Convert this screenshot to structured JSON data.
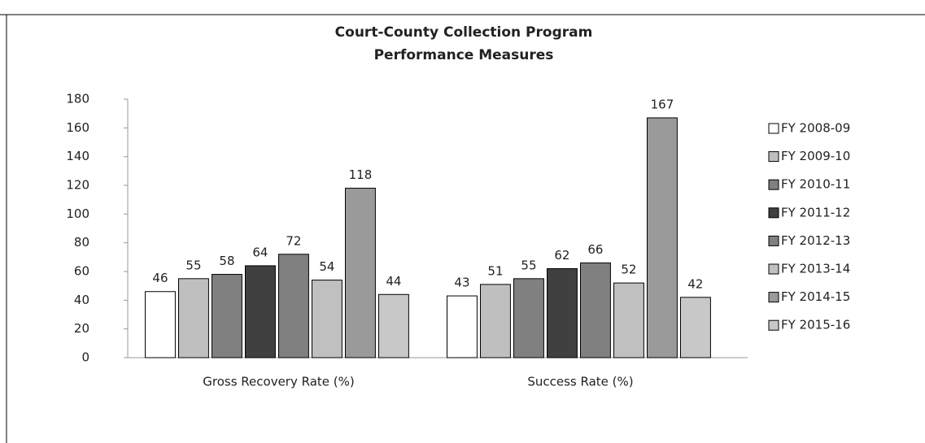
{
  "chart_data": {
    "type": "bar",
    "title": [
      "Court-County Collection Program",
      "Performance Measures"
    ],
    "categories": [
      "Gross Recovery Rate (%)",
      "Success Rate (%)"
    ],
    "series": [
      {
        "name": "FY 2008-09",
        "color": "#ffffff",
        "values": [
          46,
          43
        ]
      },
      {
        "name": "FY 2009-10",
        "color": "#bfbfbf",
        "values": [
          55,
          51
        ]
      },
      {
        "name": "FY 2010-11",
        "color": "#808080",
        "values": [
          58,
          55
        ]
      },
      {
        "name": "FY 2011-12",
        "color": "#404040",
        "values": [
          64,
          62
        ]
      },
      {
        "name": "FY 2012-13",
        "color": "#808080",
        "values": [
          72,
          66
        ]
      },
      {
        "name": "FY 2013-14",
        "color": "#c0c0c0",
        "values": [
          54,
          52
        ]
      },
      {
        "name": "FY 2014-15",
        "color": "#9a9a9a",
        "values": [
          118,
          167
        ]
      },
      {
        "name": "FY 2015-16",
        "color": "#c8c8c8",
        "values": [
          44,
          42
        ]
      }
    ],
    "ylim": [
      0,
      180
    ],
    "yticks": [
      0,
      20,
      40,
      60,
      80,
      100,
      120,
      140,
      160,
      180
    ],
    "grid": false,
    "legend": "right"
  }
}
